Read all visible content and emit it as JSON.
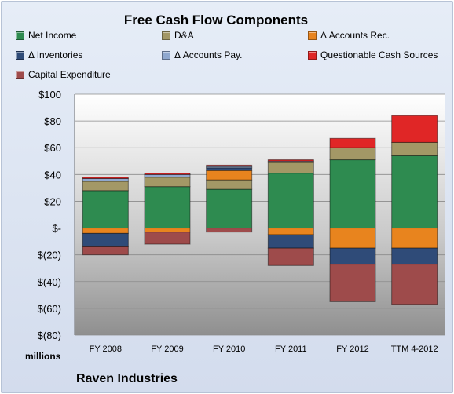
{
  "chart_data": {
    "type": "bar",
    "stacked": true,
    "title": "Free Cash Flow Components",
    "units_label": "millions",
    "footer": "Raven Industries",
    "categories": [
      "FY 2008",
      "FY 2009",
      "FY 2010",
      "FY 2011",
      "FY 2012",
      "TTM 4-2012"
    ],
    "ylim": [
      -80,
      100
    ],
    "y_ticks": [
      "$100",
      "$80",
      "$60",
      "$40",
      "$20",
      "$-",
      "$(20)",
      "$(40)",
      "$(60)",
      "$(80)"
    ],
    "y_tick_values": [
      100,
      80,
      60,
      40,
      20,
      0,
      -20,
      -40,
      -60,
      -80
    ],
    "grid": true,
    "legend_position": "top",
    "series": [
      {
        "name": "Net Income",
        "color": "#2e8b50",
        "values": [
          28,
          31,
          29,
          41,
          51,
          54
        ]
      },
      {
        "name": "D&A",
        "color": "#a39866",
        "values": [
          7,
          7,
          7,
          8,
          9,
          10
        ]
      },
      {
        "name": "Δ Accounts Rec.",
        "color": "#e8841e",
        "values": [
          -4,
          -3,
          7,
          -5,
          -15,
          -15
        ]
      },
      {
        "name": "Δ Inventories",
        "color": "#2f4b78",
        "values": [
          -10,
          0,
          2,
          -10,
          -12,
          -12
        ]
      },
      {
        "name": "Δ Accounts Pay.",
        "color": "#8fa8cf",
        "values": [
          2,
          2,
          1,
          1,
          0,
          0
        ]
      },
      {
        "name": "Questionable Cash Sources",
        "color": "#e02626",
        "values": [
          1,
          1,
          1,
          1,
          7,
          20
        ]
      },
      {
        "name": "Capital Expenditure",
        "color": "#9e4b4b",
        "values": [
          -6,
          -9,
          -3,
          -13,
          -28,
          -30
        ]
      }
    ]
  }
}
